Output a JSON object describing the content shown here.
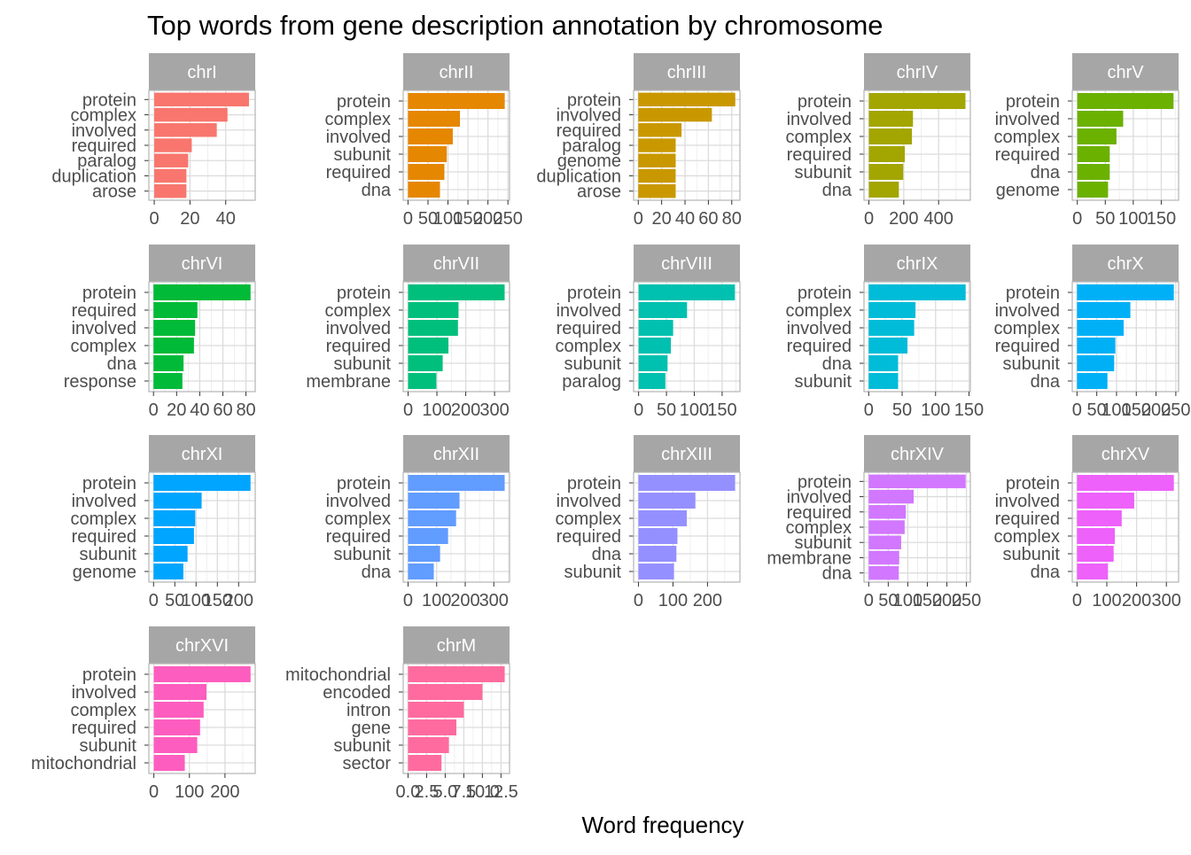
{
  "chart_data": {
    "type": "bar",
    "orientation": "horizontal",
    "title": "Top words from gene description annotation by chromosome",
    "xlabel": "Word frequency",
    "ylabel": "",
    "grid": true,
    "legend": "none",
    "panels": [
      {
        "strip": "chrI",
        "color": "#F8766D",
        "categories": [
          "protein",
          "complex",
          "involved",
          "required",
          "paralog",
          "duplication",
          "arose"
        ],
        "values": [
          53,
          41,
          35,
          21,
          19,
          18,
          18
        ],
        "xlim": [
          -3,
          56.5
        ],
        "ticks": [
          0,
          20,
          40
        ]
      },
      {
        "strip": "chrII",
        "color": "#E58700",
        "categories": [
          "protein",
          "complex",
          "involved",
          "subunit",
          "required",
          "dna"
        ],
        "values": [
          242,
          130,
          112,
          97,
          91,
          80
        ],
        "xlim": [
          -12,
          254
        ],
        "ticks": [
          0,
          50,
          100,
          150,
          200,
          250
        ]
      },
      {
        "strip": "chrIII",
        "color": "#C99800",
        "categories": [
          "protein",
          "involved",
          "required",
          "paralog",
          "genome",
          "duplication",
          "arose"
        ],
        "values": [
          83,
          63,
          37,
          32,
          32,
          32,
          32
        ],
        "xlim": [
          -4,
          87
        ],
        "ticks": [
          0,
          20,
          40,
          60,
          80
        ]
      },
      {
        "strip": "chrIV",
        "color": "#A3A500",
        "categories": [
          "protein",
          "involved",
          "complex",
          "required",
          "subunit",
          "dna"
        ],
        "values": [
          554,
          253,
          247,
          206,
          197,
          172
        ],
        "xlim": [
          -28,
          582
        ],
        "ticks": [
          0,
          200,
          400
        ]
      },
      {
        "strip": "chrV",
        "color": "#6BB100",
        "categories": [
          "protein",
          "involved",
          "complex",
          "required",
          "dna",
          "genome"
        ],
        "values": [
          172,
          82,
          70,
          58,
          58,
          55
        ],
        "xlim": [
          -9,
          181
        ],
        "ticks": [
          0,
          50,
          100,
          150
        ]
      },
      {
        "strip": "chrVI",
        "color": "#00BA38",
        "categories": [
          "protein",
          "required",
          "involved",
          "complex",
          "dna",
          "response"
        ],
        "values": [
          84,
          38,
          36,
          35,
          26,
          25
        ],
        "xlim": [
          -4,
          88
        ],
        "ticks": [
          0,
          20,
          40,
          60,
          80
        ]
      },
      {
        "strip": "chrVII",
        "color": "#00BF7D",
        "categories": [
          "protein",
          "complex",
          "involved",
          "required",
          "subunit",
          "membrane"
        ],
        "values": [
          335,
          175,
          173,
          140,
          120,
          98
        ],
        "xlim": [
          -17,
          352
        ],
        "ticks": [
          0,
          100,
          200,
          300
        ]
      },
      {
        "strip": "chrVIII",
        "color": "#00C0AF",
        "categories": [
          "protein",
          "involved",
          "required",
          "complex",
          "subunit",
          "paralog"
        ],
        "values": [
          173,
          87,
          62,
          58,
          52,
          48
        ],
        "xlim": [
          -9,
          182
        ],
        "ticks": [
          0,
          50,
          100,
          150
        ]
      },
      {
        "strip": "chrIX",
        "color": "#00BCD8",
        "categories": [
          "protein",
          "complex",
          "involved",
          "required",
          "dna",
          "subunit"
        ],
        "values": [
          145,
          70,
          68,
          58,
          44,
          44
        ],
        "xlim": [
          -7,
          152
        ],
        "ticks": [
          0,
          50,
          100,
          150
        ]
      },
      {
        "strip": "chrX",
        "color": "#00B0F6",
        "categories": [
          "protein",
          "involved",
          "complex",
          "required",
          "subunit",
          "dna"
        ],
        "values": [
          245,
          135,
          118,
          97,
          94,
          77
        ],
        "xlim": [
          -12,
          257
        ],
        "ticks": [
          0,
          50,
          100,
          150,
          200,
          250
        ]
      },
      {
        "strip": "chrXI",
        "color": "#00A5FF",
        "categories": [
          "protein",
          "involved",
          "complex",
          "required",
          "subunit",
          "genome"
        ],
        "values": [
          228,
          113,
          98,
          95,
          80,
          70
        ],
        "xlim": [
          -11,
          239
        ],
        "ticks": [
          0,
          50,
          100,
          150,
          200
        ]
      },
      {
        "strip": "chrXII",
        "color": "#619CFF",
        "categories": [
          "protein",
          "involved",
          "complex",
          "required",
          "subunit",
          "dna"
        ],
        "values": [
          338,
          180,
          168,
          140,
          112,
          90
        ],
        "xlim": [
          -17,
          355
        ],
        "ticks": [
          0,
          100,
          200,
          300
        ]
      },
      {
        "strip": "chrXIII",
        "color": "#9590FF",
        "categories": [
          "protein",
          "involved",
          "complex",
          "required",
          "dna",
          "subunit"
        ],
        "values": [
          280,
          165,
          140,
          113,
          110,
          103
        ],
        "xlim": [
          -14,
          294
        ],
        "ticks": [
          0,
          100,
          200
        ]
      },
      {
        "strip": "chrXIV",
        "color": "#D277FF",
        "categories": [
          "protein",
          "involved",
          "required",
          "complex",
          "subunit",
          "membrane",
          "dna"
        ],
        "values": [
          248,
          115,
          95,
          92,
          83,
          78,
          77
        ],
        "xlim": [
          -12,
          260
        ],
        "ticks": [
          0,
          50,
          100,
          150,
          200,
          250
        ]
      },
      {
        "strip": "chrXV",
        "color": "#EE61FA",
        "categories": [
          "protein",
          "involved",
          "required",
          "complex",
          "subunit",
          "dna"
        ],
        "values": [
          325,
          192,
          150,
          127,
          123,
          104
        ],
        "xlim": [
          -16,
          341
        ],
        "ticks": [
          0,
          100,
          200,
          300
        ]
      },
      {
        "strip": "chrXVI",
        "color": "#FD5DBF",
        "categories": [
          "protein",
          "involved",
          "complex",
          "required",
          "subunit",
          "mitochondrial"
        ],
        "values": [
          272,
          148,
          140,
          130,
          122,
          87
        ],
        "xlim": [
          -14,
          285
        ],
        "ticks": [
          0,
          100,
          200
        ]
      },
      {
        "strip": "chrM",
        "color": "#FF6B9F",
        "categories": [
          "mitochondrial",
          "encoded",
          "intron",
          "gene",
          "subunit",
          "sector"
        ],
        "values": [
          13,
          10,
          7.5,
          6.5,
          5.5,
          4.5
        ],
        "xlim": [
          -0.65,
          13.65
        ],
        "ticks": [
          "0.0",
          "2.5",
          "5.0",
          "7.5",
          "10.0",
          "12.5"
        ]
      }
    ]
  }
}
